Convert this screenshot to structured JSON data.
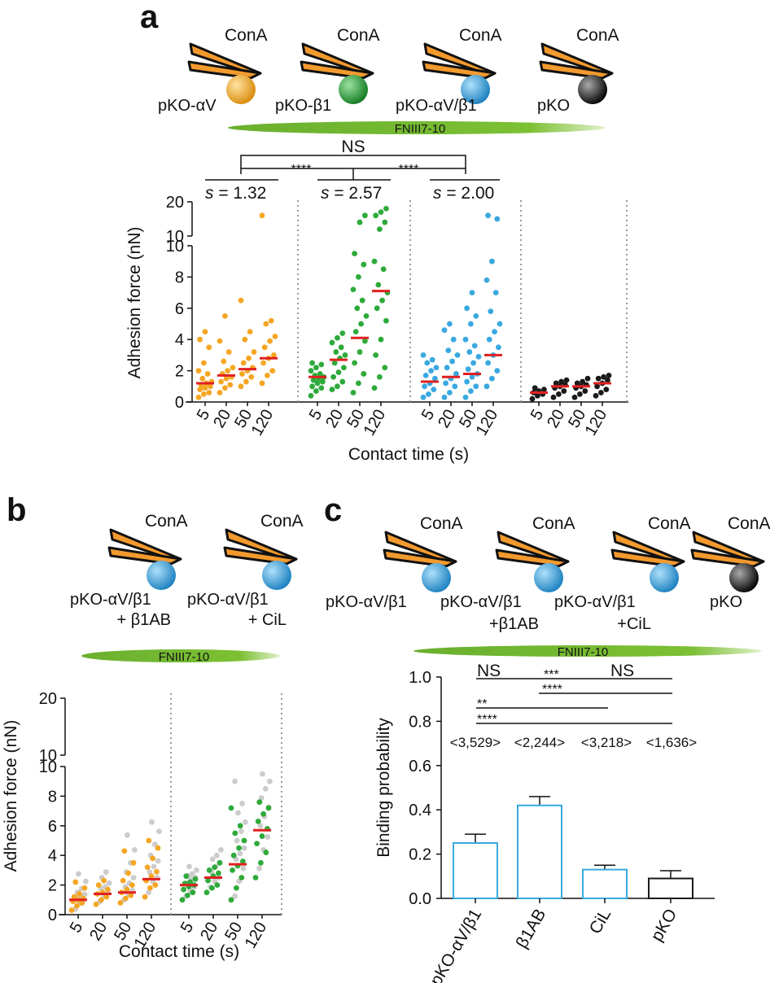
{
  "figure": {
    "panel_a": {
      "letter": "a",
      "cantilever_label": "ConA",
      "cells": [
        "pKO-αV",
        "pKO-β1",
        "pKO-αV/β1",
        "pKO"
      ],
      "cell_colors": [
        "#f5a623",
        "#2eaa3a",
        "#3aa8e0",
        "#1a1a1a"
      ],
      "substrate": "FNIII7-10",
      "top_ns": "NS",
      "sig_left": "****",
      "sig_right": "****",
      "slopes": [
        {
          "prefix": "s",
          "text": " = 1.32"
        },
        {
          "prefix": "s",
          "text": " = 2.57"
        },
        {
          "prefix": "s",
          "text": " = 2.00"
        }
      ],
      "ylabel": "Adhesion force (nN)",
      "xlabel": "Contact time (s)",
      "xticks": [
        "5",
        "20",
        "50",
        "120"
      ],
      "yticks_low": [
        "0",
        "2",
        "4",
        "6",
        "8",
        "10"
      ],
      "yticks_high": [
        "10",
        "20"
      ]
    },
    "panel_b": {
      "letter": "b",
      "cantilever_label": "ConA",
      "cells": [
        {
          "line1": "pKO-αV/β1",
          "line2": "+ β1AB"
        },
        {
          "line1": "pKO-αV/β1",
          "line2": "+ CiL"
        }
      ],
      "substrate": "FNIII7-10",
      "ylabel": "Adhesion force (nN)",
      "xlabel": "Contact time (s)",
      "xticks": [
        "5",
        "20",
        "50",
        "120"
      ],
      "yticks_low": [
        "0",
        "2",
        "4",
        "6",
        "8",
        "10"
      ],
      "yticks_high": [
        "10",
        "20"
      ]
    },
    "panel_c": {
      "letter": "c",
      "cantilever_label": "ConA",
      "cells": [
        {
          "line1": "pKO-αV/β1",
          "line2": ""
        },
        {
          "line1": "pKO-αV/β1",
          "line2": "+β1AB"
        },
        {
          "line1": "pKO-αV/β1",
          "line2": "+CiL"
        },
        {
          "line1": "pKO",
          "line2": ""
        }
      ],
      "substrate": "FNIII7-10",
      "sig": [
        "NS",
        "***",
        "NS",
        "****",
        "**",
        "****"
      ],
      "n_labels": [
        "<3,529>",
        "<2,244>",
        "<3,218>",
        "<1,636>"
      ]
    }
  },
  "chart_data": [
    {
      "type": "scatter",
      "panel": "a",
      "ylabel": "Adhesion force (nN)",
      "xlabel": "Contact time (s)",
      "ylim": [
        0,
        20
      ],
      "y_axis_break": [
        10,
        20
      ],
      "categories": [
        "5",
        "20",
        "50",
        "120"
      ],
      "series": [
        {
          "name": "pKO-αV",
          "color": "#f5a623",
          "values": [
            [
              0.3,
              0.5,
              0.6,
              0.8,
              0.9,
              1.0,
              1.1,
              1.2,
              1.3,
              1.5,
              1.8,
              2.0,
              2.5,
              3.5,
              4.0,
              4.5
            ],
            [
              0.6,
              0.9,
              1.1,
              1.3,
              1.5,
              1.6,
              1.8,
              2.0,
              2.2,
              2.6,
              3.2,
              3.9,
              5.5
            ],
            [
              1.0,
              1.3,
              1.6,
              1.8,
              2.0,
              2.2,
              2.5,
              2.8,
              3.2,
              4.0,
              4.5,
              6.5
            ],
            [
              1.2,
              1.7,
              2.0,
              2.5,
              2.8,
              3.0,
              3.5,
              3.9,
              4.2,
              5.0,
              5.2,
              16.0
            ]
          ],
          "medians": [
            1.2,
            1.7,
            2.1,
            2.8
          ]
        },
        {
          "name": "pKO-β1",
          "color": "#2eaa3a",
          "values": [
            [
              0.4,
              0.7,
              0.9,
              1.0,
              1.2,
              1.3,
              1.4,
              1.5,
              1.6,
              1.7,
              1.8,
              2.0,
              2.2,
              2.4,
              2.5
            ],
            [
              0.8,
              1.0,
              1.3,
              1.6,
              1.9,
              2.2,
              2.5,
              2.8,
              3.0,
              3.2,
              3.5,
              3.8,
              4.1,
              4.4
            ],
            [
              0.6,
              1.2,
              1.8,
              2.5,
              3.2,
              3.9,
              4.5,
              5.0,
              5.5,
              6.0,
              6.5,
              7.2,
              8.0,
              8.8,
              9.5,
              14.0,
              16.0
            ],
            [
              0.9,
              1.6,
              2.2,
              3.0,
              4.0,
              5.2,
              6.0,
              6.5,
              7.0,
              7.5,
              8.5,
              9.0,
              12.0,
              14.0,
              16.0,
              17.0,
              18.0
            ]
          ],
          "medians": [
            1.6,
            2.7,
            4.1,
            7.1
          ]
        },
        {
          "name": "pKO-αV/β1",
          "color": "#3aa8e0",
          "values": [
            [
              0.3,
              0.5,
              0.8,
              1.0,
              1.2,
              1.5,
              1.7,
              2.0,
              2.2,
              2.5,
              2.7,
              3.0
            ],
            [
              0.3,
              0.6,
              1.0,
              1.2,
              1.5,
              1.8,
              2.2,
              2.6,
              3.0,
              3.3,
              4.0,
              4.6,
              5.0
            ],
            [
              0.3,
              0.7,
              1.0,
              1.3,
              1.6,
              1.8,
              2.1,
              2.5,
              2.9,
              3.2,
              3.6,
              4.0,
              5.0,
              5.5,
              6.0,
              7.0
            ],
            [
              1.0,
              1.5,
              2.0,
              2.5,
              3.0,
              3.5,
              4.0,
              4.5,
              5.0,
              5.8,
              7.0,
              7.8,
              9.0,
              15.0,
              16.0
            ]
          ],
          "medians": [
            1.3,
            1.6,
            1.8,
            3.0
          ]
        },
        {
          "name": "pKO",
          "color": "#1a1a1a",
          "values": [
            [
              0.2,
              0.4,
              0.5,
              0.6,
              0.7,
              0.8,
              0.9
            ],
            [
              0.3,
              0.5,
              0.7,
              0.9,
              1.0,
              1.1,
              1.2,
              1.3,
              1.4
            ],
            [
              0.3,
              0.5,
              0.7,
              0.9,
              1.0,
              1.1,
              1.2,
              1.3,
              1.5
            ],
            [
              0.4,
              0.6,
              0.8,
              1.0,
              1.2,
              1.4,
              1.5,
              1.6,
              1.7
            ]
          ],
          "medians": [
            0.6,
            1.0,
            1.0,
            1.2
          ]
        }
      ],
      "slopes": [
        1.32,
        2.57,
        2.0
      ]
    },
    {
      "type": "scatter",
      "panel": "b",
      "ylabel": "Adhesion force (nN)",
      "xlabel": "Contact time (s)",
      "ylim": [
        0,
        20
      ],
      "y_axis_break": [
        10,
        20
      ],
      "categories": [
        "5",
        "20",
        "50",
        "120"
      ],
      "series": [
        {
          "name": "+ β1AB",
          "color": "#f5a623",
          "ghost": true,
          "values": [
            [
              0.3,
              0.6,
              0.8,
              0.9,
              1.0,
              1.1,
              1.2,
              1.4,
              1.8,
              2.2
            ],
            [
              0.7,
              1.0,
              1.2,
              1.4,
              1.5,
              1.7,
              2.0,
              2.3
            ],
            [
              0.8,
              1.1,
              1.3,
              1.5,
              1.7,
              2.0,
              2.3,
              2.8,
              3.5,
              4.3
            ],
            [
              1.2,
              1.8,
              2.0,
              2.3,
              2.6,
              2.9,
              3.2,
              3.8,
              4.5,
              5.0
            ]
          ],
          "medians": [
            1.0,
            1.4,
            1.5,
            2.4
          ]
        },
        {
          "name": "+ CiL",
          "color": "#2eaa3a",
          "ghost": true,
          "values": [
            [
              1.0,
              1.3,
              1.5,
              1.7,
              1.9,
              2.0,
              2.1,
              2.2,
              2.4,
              2.6
            ],
            [
              1.5,
              1.8,
              2.0,
              2.3,
              2.6,
              2.8,
              3.0,
              3.2,
              3.5
            ],
            [
              1.0,
              1.8,
              2.5,
              3.0,
              3.3,
              3.6,
              4.0,
              4.5,
              5.0,
              5.5,
              6.0,
              7.2
            ],
            [
              2.5,
              3.5,
              4.2,
              4.8,
              5.3,
              5.8,
              6.3,
              6.8,
              7.2,
              7.6
            ]
          ],
          "medians": [
            2.0,
            2.5,
            3.4,
            5.7
          ]
        }
      ]
    },
    {
      "type": "bar",
      "panel": "c",
      "ylabel": "Binding probability",
      "ylim": [
        0,
        1.0
      ],
      "yticks": [
        "0.0",
        "0.2",
        "0.4",
        "0.6",
        "0.8",
        "1.0"
      ],
      "categories": [
        "pKO-αV/β1",
        "β1AB",
        "CiL",
        "pKO"
      ],
      "values": [
        0.25,
        0.42,
        0.13,
        0.09
      ],
      "errors": [
        0.04,
        0.04,
        0.02,
        0.035
      ],
      "colors": [
        "#3aa8e0",
        "#3aa8e0",
        "#3aa8e0",
        "#1a1a1a"
      ]
    }
  ]
}
